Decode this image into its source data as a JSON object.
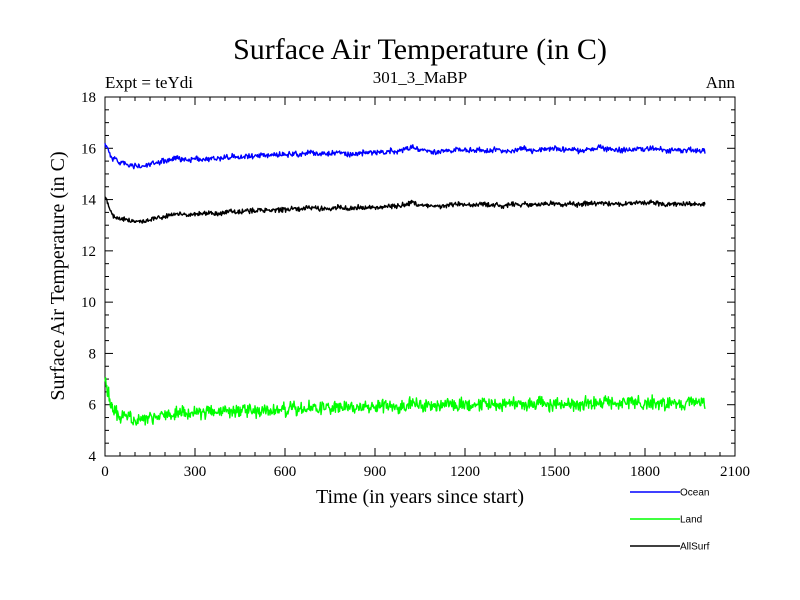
{
  "chart_data": {
    "type": "line",
    "title": "Surface Air Temperature (in C)",
    "subtitle_left": "Expt = teYdi",
    "subtitle_center": "301_3_MaBP",
    "subtitle_right": "Ann",
    "xlabel": "Time (in years since start)",
    "ylabel": "Surface Air Temperature (in C)",
    "xlim": [
      0,
      2100
    ],
    "ylim": [
      4,
      18
    ],
    "x_ticks": [
      0,
      300,
      600,
      900,
      1200,
      1500,
      1800,
      2100
    ],
    "x_tick_labels": [
      "0",
      "300",
      "600",
      "900",
      "1200",
      "1500",
      "1800",
      "2100"
    ],
    "y_ticks": [
      4,
      6,
      8,
      10,
      12,
      14,
      16,
      18
    ],
    "y_tick_labels": [
      "4",
      "6",
      "8",
      "10",
      "12",
      "14",
      "16",
      "18"
    ],
    "x_range": [
      0,
      2000
    ],
    "series": [
      {
        "name": "Ocean",
        "color": "#0000ff",
        "x": [
          0,
          25,
          50,
          75,
          100,
          125,
          150,
          175,
          200,
          225,
          250,
          275,
          300,
          325,
          350,
          375,
          400,
          425,
          450,
          475,
          500,
          525,
          550,
          575,
          600,
          625,
          650,
          675,
          700,
          725,
          750,
          775,
          800,
          825,
          850,
          875,
          900,
          925,
          950,
          975,
          1000,
          1025,
          1050,
          1075,
          1100,
          1125,
          1150,
          1175,
          1200,
          1225,
          1250,
          1275,
          1300,
          1325,
          1350,
          1375,
          1400,
          1425,
          1450,
          1475,
          1500,
          1525,
          1550,
          1575,
          1600,
          1625,
          1650,
          1675,
          1700,
          1725,
          1750,
          1775,
          1800,
          1825,
          1850,
          1875,
          1900,
          1925,
          1950,
          1975,
          2000
        ],
        "values": [
          16.2,
          15.6,
          15.45,
          15.35,
          15.3,
          15.3,
          15.35,
          15.45,
          15.5,
          15.55,
          15.6,
          15.55,
          15.6,
          15.55,
          15.6,
          15.6,
          15.65,
          15.7,
          15.65,
          15.7,
          15.7,
          15.75,
          15.7,
          15.75,
          15.75,
          15.8,
          15.75,
          15.85,
          15.8,
          15.8,
          15.8,
          15.85,
          15.8,
          15.75,
          15.8,
          15.85,
          15.85,
          15.8,
          15.9,
          15.9,
          15.95,
          16.05,
          15.95,
          15.9,
          15.85,
          15.9,
          15.9,
          15.95,
          15.95,
          15.9,
          15.95,
          15.9,
          15.95,
          15.9,
          15.9,
          15.95,
          16.0,
          15.9,
          15.95,
          15.95,
          16.0,
          15.95,
          15.95,
          15.9,
          15.95,
          15.95,
          16.05,
          15.95,
          15.95,
          15.9,
          15.95,
          16.0,
          15.95,
          16.0,
          15.95,
          15.9,
          15.95,
          15.9,
          15.95,
          15.9,
          15.9
        ]
      },
      {
        "name": "Land",
        "color": "#00ff00",
        "x": [
          0,
          25,
          50,
          75,
          100,
          125,
          150,
          175,
          200,
          225,
          250,
          275,
          300,
          325,
          350,
          375,
          400,
          425,
          450,
          475,
          500,
          525,
          550,
          575,
          600,
          625,
          650,
          675,
          700,
          725,
          750,
          775,
          800,
          825,
          850,
          875,
          900,
          925,
          950,
          975,
          1000,
          1025,
          1050,
          1075,
          1100,
          1125,
          1150,
          1175,
          1200,
          1225,
          1250,
          1275,
          1300,
          1325,
          1350,
          1375,
          1400,
          1425,
          1450,
          1475,
          1500,
          1525,
          1550,
          1575,
          1600,
          1625,
          1650,
          1675,
          1700,
          1725,
          1750,
          1775,
          1800,
          1825,
          1850,
          1875,
          1900,
          1925,
          1950,
          1975,
          2000
        ],
        "values": [
          6.9,
          5.8,
          5.55,
          5.5,
          5.45,
          5.45,
          5.5,
          5.55,
          5.6,
          5.65,
          5.65,
          5.7,
          5.75,
          5.7,
          5.75,
          5.7,
          5.75,
          5.75,
          5.8,
          5.75,
          5.75,
          5.8,
          5.75,
          5.8,
          5.8,
          5.85,
          5.8,
          5.9,
          5.85,
          5.85,
          5.9,
          5.9,
          5.85,
          5.9,
          5.9,
          5.95,
          5.9,
          5.95,
          6.0,
          5.95,
          6.0,
          6.1,
          6.0,
          5.95,
          6.0,
          6.0,
          6.05,
          6.0,
          6.05,
          6.0,
          6.05,
          6.0,
          6.05,
          6.0,
          6.05,
          6.05,
          6.0,
          6.05,
          6.1,
          6.0,
          6.05,
          6.05,
          6.05,
          6.0,
          6.05,
          6.05,
          6.1,
          6.05,
          6.05,
          6.0,
          6.05,
          6.1,
          6.05,
          6.1,
          6.05,
          6.0,
          6.05,
          6.05,
          6.1,
          6.05,
          6.1
        ]
      },
      {
        "name": "AllSurf",
        "color": "#000000",
        "x": [
          0,
          25,
          50,
          75,
          100,
          125,
          150,
          175,
          200,
          225,
          250,
          275,
          300,
          325,
          350,
          375,
          400,
          425,
          450,
          475,
          500,
          525,
          550,
          575,
          600,
          625,
          650,
          675,
          700,
          725,
          750,
          775,
          800,
          825,
          850,
          875,
          900,
          925,
          950,
          975,
          1000,
          1025,
          1050,
          1075,
          1100,
          1125,
          1150,
          1175,
          1200,
          1225,
          1250,
          1275,
          1300,
          1325,
          1350,
          1375,
          1400,
          1425,
          1450,
          1475,
          1500,
          1525,
          1550,
          1575,
          1600,
          1625,
          1650,
          1675,
          1700,
          1725,
          1750,
          1775,
          1800,
          1825,
          1850,
          1875,
          1900,
          1925,
          1950,
          1975,
          2000
        ],
        "values": [
          14.1,
          13.4,
          13.25,
          13.2,
          13.15,
          13.15,
          13.2,
          13.3,
          13.35,
          13.4,
          13.45,
          13.4,
          13.45,
          13.45,
          13.5,
          13.45,
          13.5,
          13.55,
          13.5,
          13.55,
          13.55,
          13.6,
          13.55,
          13.6,
          13.6,
          13.65,
          13.6,
          13.7,
          13.65,
          13.65,
          13.65,
          13.7,
          13.65,
          13.65,
          13.7,
          13.7,
          13.7,
          13.7,
          13.75,
          13.75,
          13.8,
          13.9,
          13.8,
          13.75,
          13.75,
          13.75,
          13.8,
          13.8,
          13.8,
          13.75,
          13.8,
          13.8,
          13.8,
          13.75,
          13.8,
          13.8,
          13.85,
          13.8,
          13.8,
          13.85,
          13.85,
          13.8,
          13.85,
          13.8,
          13.85,
          13.85,
          13.9,
          13.85,
          13.85,
          13.8,
          13.85,
          13.9,
          13.85,
          13.9,
          13.85,
          13.8,
          13.85,
          13.8,
          13.85,
          13.8,
          13.8
        ]
      }
    ],
    "legend_position": "bottom-right",
    "noise_amplitude": [
      0.13,
      0.32,
      0.12
    ]
  }
}
